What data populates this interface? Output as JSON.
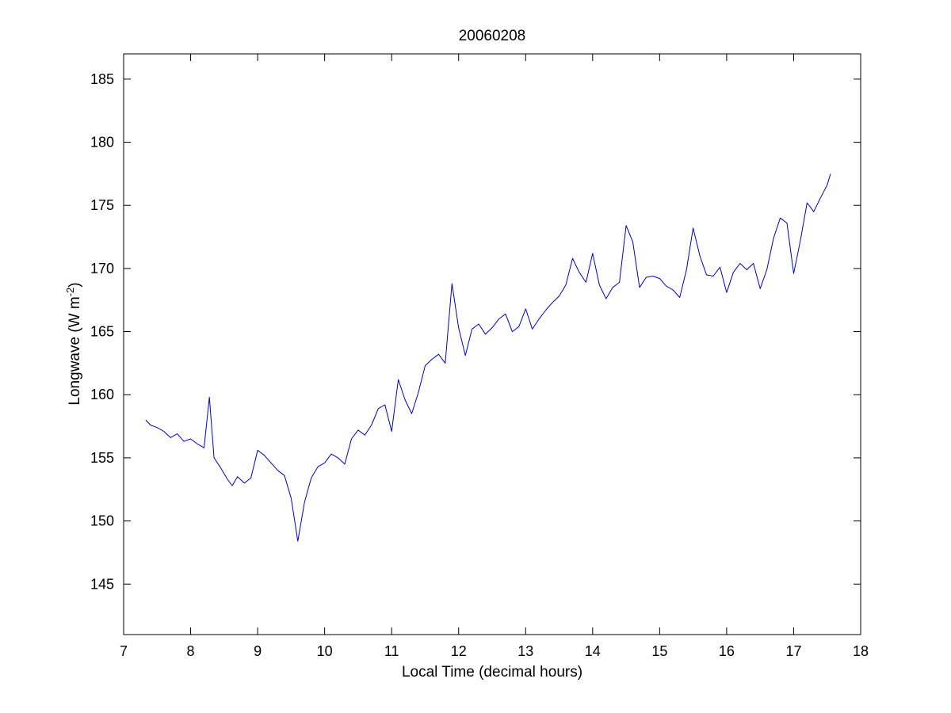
{
  "chart_data": {
    "type": "line",
    "title": "20060208",
    "xlabel": "Local Time (decimal hours)",
    "ylabel": {
      "main": "Longwave (W m",
      "superscript": "-2",
      "close": ")"
    },
    "xlim": [
      7,
      18
    ],
    "ylim": [
      141,
      187
    ],
    "xticks": [
      7,
      8,
      9,
      10,
      11,
      12,
      13,
      14,
      15,
      16,
      17,
      18
    ],
    "xtick_labels": [
      "7",
      "8",
      "9",
      "10",
      "11",
      "12",
      "13",
      "14",
      "15",
      "16",
      "17",
      "18"
    ],
    "yticks": [
      145,
      150,
      155,
      160,
      165,
      170,
      175,
      180,
      185
    ],
    "ytick_labels": [
      "145",
      "150",
      "155",
      "160",
      "165",
      "170",
      "175",
      "180",
      "185"
    ],
    "grid": false,
    "line_color": "#0000cc",
    "x": [
      7.33,
      7.4,
      7.5,
      7.6,
      7.7,
      7.8,
      7.9,
      8.0,
      8.1,
      8.2,
      8.28,
      8.35,
      8.45,
      8.55,
      8.62,
      8.7,
      8.8,
      8.9,
      9.0,
      9.1,
      9.2,
      9.3,
      9.4,
      9.5,
      9.6,
      9.7,
      9.8,
      9.9,
      10.0,
      10.1,
      10.2,
      10.3,
      10.4,
      10.5,
      10.6,
      10.7,
      10.8,
      10.9,
      11.0,
      11.1,
      11.2,
      11.3,
      11.4,
      11.5,
      11.6,
      11.7,
      11.8,
      11.9,
      12.0,
      12.1,
      12.2,
      12.3,
      12.4,
      12.5,
      12.6,
      12.7,
      12.8,
      12.9,
      13.0,
      13.1,
      13.2,
      13.3,
      13.4,
      13.5,
      13.6,
      13.7,
      13.8,
      13.9,
      14.0,
      14.1,
      14.2,
      14.3,
      14.4,
      14.5,
      14.6,
      14.7,
      14.8,
      14.9,
      15.0,
      15.1,
      15.2,
      15.3,
      15.4,
      15.5,
      15.6,
      15.7,
      15.8,
      15.9,
      16.0,
      16.1,
      16.2,
      16.3,
      16.4,
      16.5,
      16.6,
      16.7,
      16.8,
      16.9,
      17.0,
      17.1,
      17.2,
      17.3,
      17.4,
      17.5,
      17.55
    ],
    "y": [
      158.0,
      157.6,
      157.4,
      157.1,
      156.6,
      156.9,
      156.3,
      156.5,
      156.1,
      155.8,
      159.8,
      155.0,
      154.2,
      153.3,
      152.8,
      153.5,
      153.0,
      153.4,
      155.6,
      155.2,
      154.6,
      154.0,
      153.6,
      151.8,
      148.4,
      151.5,
      153.4,
      154.3,
      154.6,
      155.3,
      155.0,
      154.5,
      156.5,
      157.2,
      156.8,
      157.6,
      158.9,
      159.2,
      157.1,
      161.2,
      159.6,
      158.5,
      160.2,
      162.3,
      162.8,
      163.2,
      162.5,
      168.8,
      165.3,
      163.1,
      165.2,
      165.6,
      164.8,
      165.3,
      166.0,
      166.4,
      165.0,
      165.4,
      166.8,
      165.2,
      166.0,
      166.7,
      167.3,
      167.8,
      168.7,
      170.8,
      169.7,
      168.9,
      171.2,
      168.7,
      167.6,
      168.5,
      168.9,
      173.4,
      172.1,
      168.5,
      169.3,
      169.4,
      169.2,
      168.6,
      168.3,
      167.7,
      169.9,
      173.2,
      171.0,
      169.5,
      169.4,
      170.1,
      168.1,
      169.7,
      170.4,
      169.9,
      170.4,
      168.4,
      169.9,
      172.4,
      174.0,
      173.6,
      169.6,
      172.2,
      175.2,
      174.5,
      175.6,
      176.6,
      177.5
    ]
  }
}
